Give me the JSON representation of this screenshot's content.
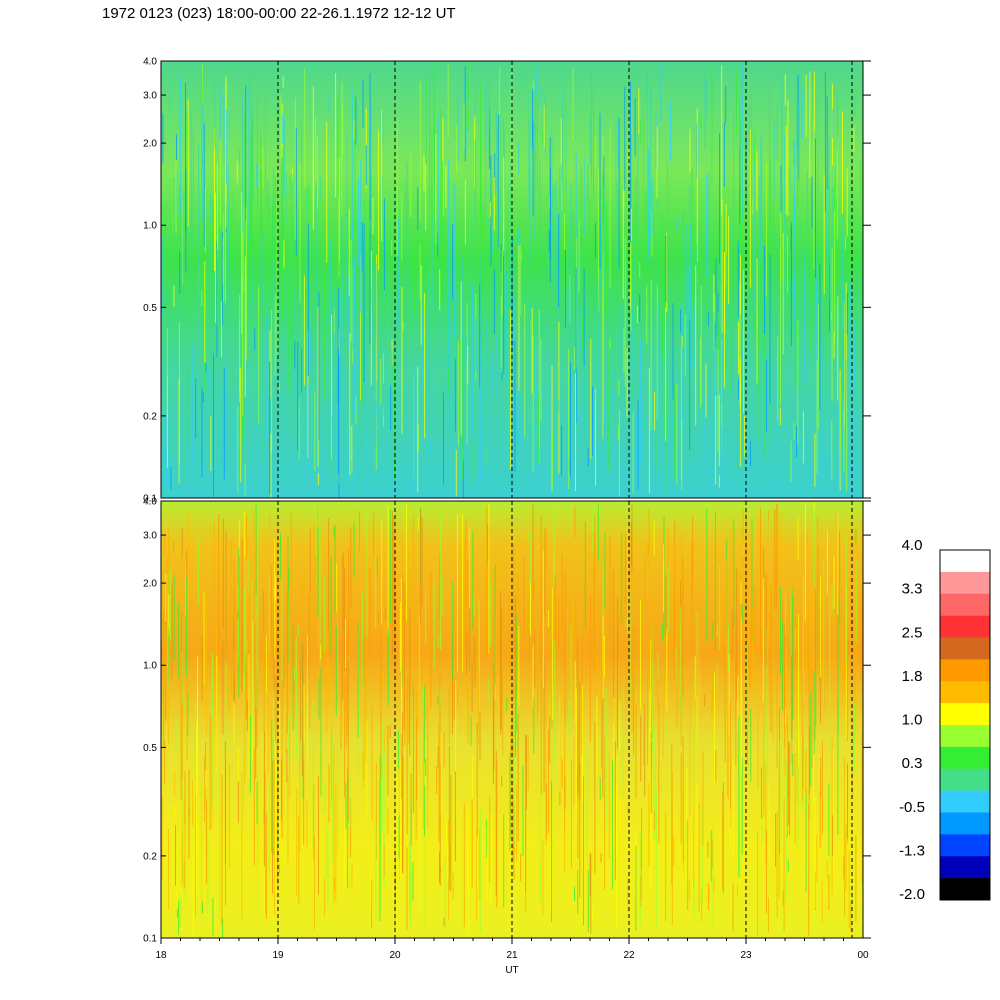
{
  "title": "1972 0123 (023) 18:00-00:00 22-26.1.1972  12-12 UT",
  "chart_data": {
    "type": "heatmap",
    "xlabel": "UT",
    "x_tick_labels": [
      "18",
      "19",
      "20",
      "21",
      "22",
      "23",
      "00"
    ],
    "xlim_hours": [
      18,
      24
    ],
    "y_scale": "log",
    "ylim": [
      0.1,
      4.0
    ],
    "y_tick_labels": [
      "0.1",
      "0.2",
      "0.5",
      "1.0",
      "2.0",
      "3.0",
      "4.0"
    ],
    "y_tick_values": [
      0.1,
      0.2,
      0.5,
      1.0,
      2.0,
      3.0,
      4.0
    ],
    "dashed_hour_lines": [
      19,
      20,
      21,
      22,
      23,
      24
    ],
    "panels": [
      {
        "name": "upper-panel",
        "dominant_value_range": [
          -0.5,
          1.0
        ]
      },
      {
        "name": "lower-panel",
        "dominant_value_range": [
          0.3,
          2.5
        ]
      }
    ],
    "colorbar": {
      "labels": [
        "4.0",
        "3.3",
        "2.5",
        "1.8",
        "1.0",
        "0.3",
        "-0.5",
        "-1.3",
        "-2.0"
      ],
      "colors_top_to_bottom": [
        "#ffffff",
        "#ff9999",
        "#ff6666",
        "#ff3333",
        "#d2691e",
        "#ff9900",
        "#ffbb00",
        "#ffff00",
        "#99ff33",
        "#33ee33",
        "#44dd88",
        "#33ccff",
        "#0099ff",
        "#0044ff",
        "#0000bb",
        "#000000"
      ]
    }
  }
}
